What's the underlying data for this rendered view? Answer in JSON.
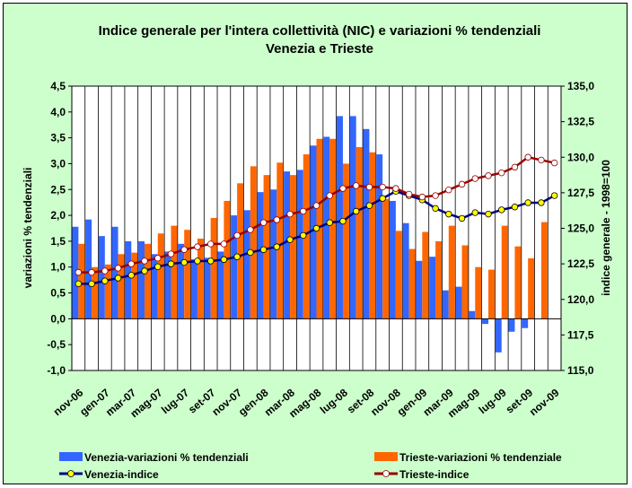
{
  "chart_data": {
    "type": "bar",
    "title": "Indice generale per l'intera collettività (NIC) e variazioni % tendenziali",
    "subtitle": "Venezia e Trieste",
    "ylabel": "variazioni % tendenziali",
    "y2label": "indice generale - 1998=100",
    "ylim": [
      -1.0,
      4.5
    ],
    "y2lim": [
      115.0,
      135.0
    ],
    "yticks": [
      "4,5",
      "4,0",
      "3,5",
      "3,0",
      "2,5",
      "2,0",
      "1,5",
      "1,0",
      "0,5",
      "0,0",
      "-0,5",
      "-1,0"
    ],
    "y2ticks": [
      "135,0",
      "132,5",
      "130,0",
      "127,5",
      "125,0",
      "122,5",
      "120,0",
      "117,5",
      "115,0"
    ],
    "x_tick_labels": [
      "nov-06",
      "gen-07",
      "mar-07",
      "mag-07",
      "lug-07",
      "set-07",
      "nov-07",
      "gen-08",
      "mar-08",
      "mag-08",
      "lug-08",
      "set-08",
      "nov-08",
      "gen-09",
      "mar-09",
      "mag-09",
      "lug-09",
      "set-09",
      "nov-09"
    ],
    "grid": true,
    "legend_placement": "bottom",
    "months_count": 37,
    "series": [
      {
        "name": "Venezia-variazioni % tendenziali",
        "kind": "bar",
        "axis": "left",
        "color": "#3366ff",
        "values": [
          1.78,
          1.92,
          1.6,
          1.78,
          1.5,
          1.5,
          1.25,
          1.3,
          1.45,
          1.15,
          1.18,
          1.3,
          2.0,
          2.1,
          2.45,
          2.5,
          2.85,
          2.88,
          3.35,
          3.52,
          3.92,
          3.92,
          3.67,
          3.18,
          2.28,
          1.85,
          1.12,
          1.2,
          0.55,
          0.62,
          0.15,
          -0.1,
          -0.65,
          -0.25,
          -0.18,
          0.0,
          0.0
        ]
      },
      {
        "name": "Trieste-variazioni % tendenziale",
        "kind": "bar",
        "axis": "left",
        "color": "#ff6600",
        "values": [
          1.45,
          1.0,
          1.05,
          1.25,
          1.28,
          1.45,
          1.65,
          1.8,
          1.72,
          1.55,
          1.95,
          2.28,
          2.62,
          2.95,
          2.78,
          3.02,
          2.78,
          3.18,
          3.48,
          3.48,
          3.0,
          3.32,
          3.22,
          2.32,
          1.7,
          1.35,
          1.68,
          1.5,
          1.8,
          1.42,
          1.0,
          0.95,
          1.8,
          1.4,
          1.17,
          1.87,
          0.0
        ]
      },
      {
        "name": "Venezia-indice",
        "kind": "line",
        "axis": "right",
        "color": "#000080",
        "marker": "#ffff00",
        "values": [
          121.1,
          121.1,
          121.3,
          121.5,
          121.7,
          122.0,
          122.3,
          122.5,
          122.6,
          122.7,
          122.7,
          122.8,
          123.0,
          123.3,
          123.5,
          123.7,
          124.2,
          124.5,
          125.0,
          125.4,
          125.5,
          126.2,
          126.6,
          127.1,
          127.6,
          127.3,
          127.0,
          126.4,
          126.0,
          125.7,
          126.1,
          126.0,
          126.3,
          126.5,
          126.8,
          126.8,
          127.3
        ]
      },
      {
        "name": "Trieste-indice",
        "kind": "line",
        "axis": "right",
        "color": "#990000",
        "marker": "#ffffff",
        "values": [
          121.9,
          121.9,
          122.0,
          122.2,
          122.5,
          122.7,
          122.9,
          123.2,
          123.5,
          123.7,
          123.9,
          123.9,
          124.5,
          124.9,
          125.4,
          125.6,
          126.0,
          126.2,
          126.6,
          127.3,
          127.8,
          128.0,
          127.9,
          127.9,
          127.8,
          127.4,
          127.2,
          127.3,
          127.7,
          128.1,
          128.5,
          128.7,
          128.9,
          129.3,
          130.0,
          129.8,
          129.6
        ]
      }
    ]
  }
}
